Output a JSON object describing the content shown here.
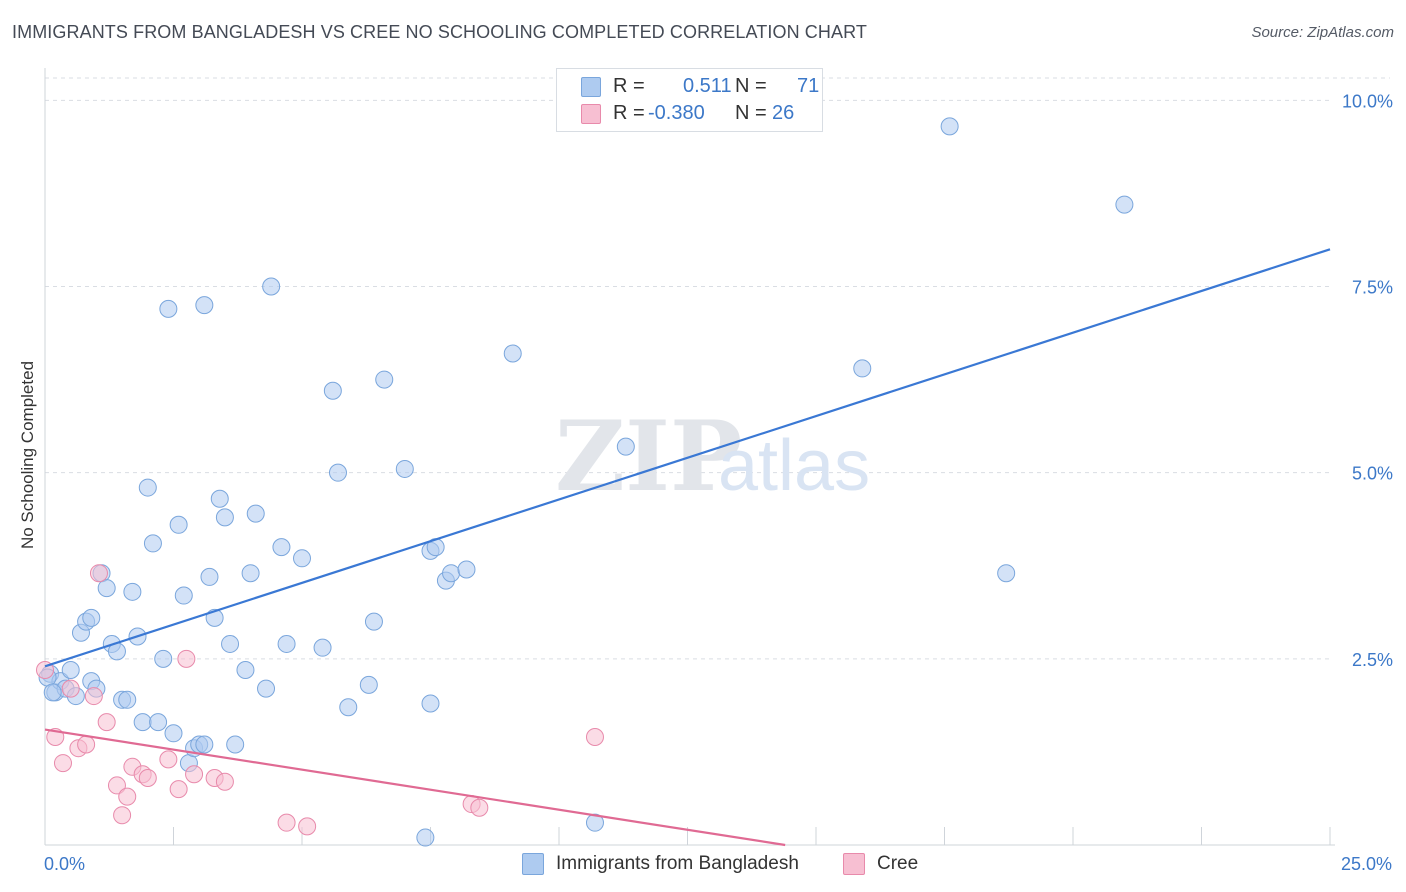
{
  "header": {
    "title": "IMMIGRANTS FROM BANGLADESH VS CREE NO SCHOOLING COMPLETED CORRELATION CHART",
    "source": "Source: ZipAtlas.com"
  },
  "watermark": {
    "zip": "ZIP",
    "atlas": "atlas"
  },
  "legend": {
    "rows": [
      {
        "r_label": "R =",
        "r_value": "0.511",
        "n_label": "N =",
        "n_value": "71",
        "color": "#aecbf0"
      },
      {
        "r_label": "R =",
        "r_value": "-0.380",
        "n_label": "N =",
        "n_value": "26",
        "color": "#f7bfd2"
      }
    ]
  },
  "bottom_legend": [
    {
      "label": "Immigrants from Bangladesh",
      "color": "#aecbf0"
    },
    {
      "label": "Cree",
      "color": "#f7bfd2"
    }
  ],
  "chart_data": {
    "type": "scatter",
    "ylabel": "No Schooling Completed",
    "xlabel": "",
    "xlim": [
      0,
      25
    ],
    "ylim": [
      0,
      10.3
    ],
    "x_tick_labels": [
      {
        "value": 0,
        "label": "0.0%"
      },
      {
        "value": 25,
        "label": "25.0%"
      }
    ],
    "y_tick_labels": [
      {
        "value": 2.5,
        "label": "2.5%"
      },
      {
        "value": 5.0,
        "label": "5.0%"
      },
      {
        "value": 7.5,
        "label": "7.5%"
      },
      {
        "value": 10.0,
        "label": "10.0%"
      }
    ],
    "x_minor_ticks": [
      0,
      2.5,
      5,
      7.5,
      10,
      12.5,
      15,
      17.5,
      20,
      22.5,
      25
    ],
    "grid": true,
    "colors": {
      "blue_fill": "#aecbf0",
      "blue_stroke": "#7aa6dc",
      "blue_line": "#3a78d4",
      "pink_fill": "#f7bfd2",
      "pink_stroke": "#e88aab",
      "pink_line": "#e06a93",
      "axis_text": "#3c78c8",
      "grid": "#d9dde3"
    },
    "series": [
      {
        "name": "Immigrants from Bangladesh",
        "trend": {
          "x": [
            0,
            25
          ],
          "y": [
            2.4,
            8.0
          ]
        },
        "points": [
          [
            0.1,
            2.3
          ],
          [
            0.2,
            2.05
          ],
          [
            0.3,
            2.2
          ],
          [
            0.4,
            2.1
          ],
          [
            0.5,
            2.35
          ],
          [
            0.6,
            2.0
          ],
          [
            0.7,
            2.85
          ],
          [
            0.8,
            3.0
          ],
          [
            0.9,
            3.05
          ],
          [
            0.9,
            2.2
          ],
          [
            1.0,
            2.1
          ],
          [
            1.1,
            3.65
          ],
          [
            1.2,
            3.45
          ],
          [
            1.3,
            2.7
          ],
          [
            1.4,
            2.6
          ],
          [
            1.5,
            1.95
          ],
          [
            1.6,
            1.95
          ],
          [
            1.7,
            3.4
          ],
          [
            1.8,
            2.8
          ],
          [
            1.9,
            1.65
          ],
          [
            2.0,
            4.8
          ],
          [
            2.1,
            4.05
          ],
          [
            2.2,
            1.65
          ],
          [
            2.3,
            2.5
          ],
          [
            2.4,
            7.2
          ],
          [
            2.5,
            1.5
          ],
          [
            2.6,
            4.3
          ],
          [
            2.7,
            3.35
          ],
          [
            2.8,
            1.1
          ],
          [
            2.9,
            1.3
          ],
          [
            3.0,
            1.35
          ],
          [
            3.1,
            1.35
          ],
          [
            3.1,
            7.25
          ],
          [
            3.2,
            3.6
          ],
          [
            3.3,
            3.05
          ],
          [
            3.4,
            4.65
          ],
          [
            3.5,
            4.4
          ],
          [
            3.6,
            2.7
          ],
          [
            3.7,
            1.35
          ],
          [
            3.9,
            2.35
          ],
          [
            4.0,
            3.65
          ],
          [
            4.1,
            4.45
          ],
          [
            4.3,
            2.1
          ],
          [
            4.4,
            7.5
          ],
          [
            4.6,
            4.0
          ],
          [
            4.7,
            2.7
          ],
          [
            5.0,
            3.85
          ],
          [
            5.4,
            2.65
          ],
          [
            5.6,
            6.1
          ],
          [
            5.7,
            5.0
          ],
          [
            5.9,
            1.85
          ],
          [
            6.3,
            2.15
          ],
          [
            6.4,
            3.0
          ],
          [
            6.6,
            6.25
          ],
          [
            7.0,
            5.05
          ],
          [
            7.4,
            0.1
          ],
          [
            7.5,
            3.95
          ],
          [
            7.5,
            1.9
          ],
          [
            7.6,
            4.0
          ],
          [
            7.8,
            3.55
          ],
          [
            7.9,
            3.65
          ],
          [
            8.2,
            3.7
          ],
          [
            9.1,
            6.6
          ],
          [
            10.7,
            0.3
          ],
          [
            11.3,
            5.35
          ],
          [
            15.9,
            6.4
          ],
          [
            17.6,
            9.65
          ],
          [
            18.7,
            3.65
          ],
          [
            21.0,
            8.6
          ],
          [
            0.05,
            2.25
          ],
          [
            0.15,
            2.05
          ]
        ]
      },
      {
        "name": "Cree",
        "trend": {
          "x": [
            0,
            14.4
          ],
          "y": [
            1.55,
            0.0
          ]
        },
        "points": [
          [
            0.0,
            2.35
          ],
          [
            0.2,
            1.45
          ],
          [
            0.35,
            1.1
          ],
          [
            0.5,
            2.1
          ],
          [
            0.65,
            1.3
          ],
          [
            0.8,
            1.35
          ],
          [
            0.95,
            2.0
          ],
          [
            1.05,
            3.65
          ],
          [
            1.2,
            1.65
          ],
          [
            1.4,
            0.8
          ],
          [
            1.5,
            0.4
          ],
          [
            1.6,
            0.65
          ],
          [
            1.7,
            1.05
          ],
          [
            1.9,
            0.95
          ],
          [
            2.0,
            0.9
          ],
          [
            2.4,
            1.15
          ],
          [
            2.6,
            0.75
          ],
          [
            2.75,
            2.5
          ],
          [
            2.9,
            0.95
          ],
          [
            3.3,
            0.9
          ],
          [
            3.5,
            0.85
          ],
          [
            4.7,
            0.3
          ],
          [
            5.1,
            0.25
          ],
          [
            8.3,
            0.55
          ],
          [
            8.45,
            0.5
          ],
          [
            10.7,
            1.45
          ]
        ]
      }
    ]
  }
}
